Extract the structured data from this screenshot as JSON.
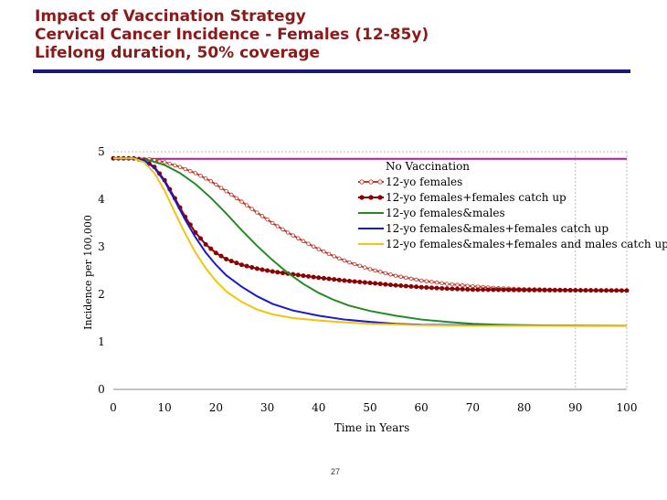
{
  "slide": {
    "title_lines": [
      "Impact of Vaccination Strategy",
      "Cervical Cancer Incidence - Females (12-85y)",
      "Lifelong duration, 50% coverage"
    ],
    "page_number": "27",
    "colors": {
      "title": "#8b1a1a",
      "rule": "#1a1a7a"
    }
  },
  "chart_data": {
    "type": "line",
    "xlabel": "Time in Years",
    "ylabel": "Incidence per 100,000",
    "xlim": [
      0,
      100
    ],
    "ylim": [
      0,
      5
    ],
    "xticks": [
      0,
      10,
      20,
      30,
      40,
      50,
      60,
      70,
      80,
      90,
      100
    ],
    "yticks": [
      0,
      1,
      2,
      3,
      4,
      5
    ],
    "legend_position": "upper-right",
    "series": [
      {
        "name": "No Vaccination",
        "color": "#b5179e",
        "marker": "none",
        "points": [
          [
            0,
            4.85
          ],
          [
            100,
            4.85
          ]
        ]
      },
      {
        "name": "12-yo females",
        "color": "#c0392b",
        "marker": "open-circle",
        "points": [
          [
            0,
            4.86
          ],
          [
            4,
            4.86
          ],
          [
            7,
            4.84
          ],
          [
            10,
            4.78
          ],
          [
            13,
            4.68
          ],
          [
            16,
            4.55
          ],
          [
            19,
            4.38
          ],
          [
            22,
            4.17
          ],
          [
            25,
            3.95
          ],
          [
            28,
            3.72
          ],
          [
            31,
            3.5
          ],
          [
            34,
            3.3
          ],
          [
            37,
            3.12
          ],
          [
            40,
            2.95
          ],
          [
            43,
            2.8
          ],
          [
            46,
            2.67
          ],
          [
            50,
            2.53
          ],
          [
            55,
            2.39
          ],
          [
            60,
            2.29
          ],
          [
            65,
            2.22
          ],
          [
            70,
            2.17
          ],
          [
            75,
            2.13
          ],
          [
            80,
            2.11
          ],
          [
            85,
            2.1
          ],
          [
            90,
            2.09
          ],
          [
            100,
            2.08
          ]
        ]
      },
      {
        "name": "12-yo females+females catch up",
        "color": "#8b0000",
        "marker": "filled-circle",
        "points": [
          [
            0,
            4.86
          ],
          [
            4,
            4.86
          ],
          [
            6,
            4.82
          ],
          [
            8,
            4.68
          ],
          [
            10,
            4.4
          ],
          [
            12,
            4.02
          ],
          [
            14,
            3.63
          ],
          [
            16,
            3.3
          ],
          [
            18,
            3.05
          ],
          [
            20,
            2.87
          ],
          [
            22,
            2.74
          ],
          [
            25,
            2.62
          ],
          [
            28,
            2.54
          ],
          [
            31,
            2.48
          ],
          [
            35,
            2.42
          ],
          [
            40,
            2.35
          ],
          [
            45,
            2.29
          ],
          [
            50,
            2.24
          ],
          [
            55,
            2.19
          ],
          [
            60,
            2.15
          ],
          [
            65,
            2.12
          ],
          [
            70,
            2.1
          ],
          [
            80,
            2.09
          ],
          [
            100,
            2.08
          ]
        ]
      },
      {
        "name": "12-yo females&males",
        "color": "#228b22",
        "marker": "none",
        "points": [
          [
            0,
            4.86
          ],
          [
            4,
            4.86
          ],
          [
            7,
            4.82
          ],
          [
            10,
            4.72
          ],
          [
            13,
            4.55
          ],
          [
            16,
            4.32
          ],
          [
            19,
            4.03
          ],
          [
            22,
            3.7
          ],
          [
            25,
            3.35
          ],
          [
            28,
            3.02
          ],
          [
            31,
            2.72
          ],
          [
            34,
            2.45
          ],
          [
            37,
            2.22
          ],
          [
            40,
            2.03
          ],
          [
            43,
            1.88
          ],
          [
            46,
            1.76
          ],
          [
            50,
            1.65
          ],
          [
            55,
            1.55
          ],
          [
            60,
            1.47
          ],
          [
            65,
            1.42
          ],
          [
            70,
            1.38
          ],
          [
            75,
            1.36
          ],
          [
            80,
            1.35
          ],
          [
            90,
            1.34
          ],
          [
            100,
            1.34
          ]
        ]
      },
      {
        "name": "12-yo females&males+females catch up",
        "color": "#1a1acc",
        "marker": "none",
        "points": [
          [
            0,
            4.86
          ],
          [
            4,
            4.86
          ],
          [
            6,
            4.82
          ],
          [
            8,
            4.66
          ],
          [
            10,
            4.37
          ],
          [
            12,
            3.98
          ],
          [
            14,
            3.57
          ],
          [
            16,
            3.2
          ],
          [
            18,
            2.88
          ],
          [
            20,
            2.62
          ],
          [
            22,
            2.4
          ],
          [
            25,
            2.16
          ],
          [
            28,
            1.96
          ],
          [
            31,
            1.8
          ],
          [
            35,
            1.66
          ],
          [
            40,
            1.55
          ],
          [
            45,
            1.47
          ],
          [
            50,
            1.42
          ],
          [
            55,
            1.38
          ],
          [
            60,
            1.36
          ],
          [
            70,
            1.35
          ],
          [
            100,
            1.34
          ]
        ]
      },
      {
        "name": "12-yo females&males+females and males catch up",
        "color": "#f2c40f",
        "marker": "none",
        "points": [
          [
            0,
            4.86
          ],
          [
            4,
            4.86
          ],
          [
            6,
            4.78
          ],
          [
            8,
            4.55
          ],
          [
            10,
            4.18
          ],
          [
            12,
            3.72
          ],
          [
            14,
            3.28
          ],
          [
            16,
            2.88
          ],
          [
            18,
            2.55
          ],
          [
            20,
            2.28
          ],
          [
            22,
            2.06
          ],
          [
            25,
            1.84
          ],
          [
            28,
            1.68
          ],
          [
            31,
            1.58
          ],
          [
            35,
            1.5
          ],
          [
            40,
            1.45
          ],
          [
            45,
            1.41
          ],
          [
            50,
            1.38
          ],
          [
            60,
            1.35
          ],
          [
            70,
            1.34
          ],
          [
            100,
            1.34
          ]
        ]
      }
    ]
  }
}
